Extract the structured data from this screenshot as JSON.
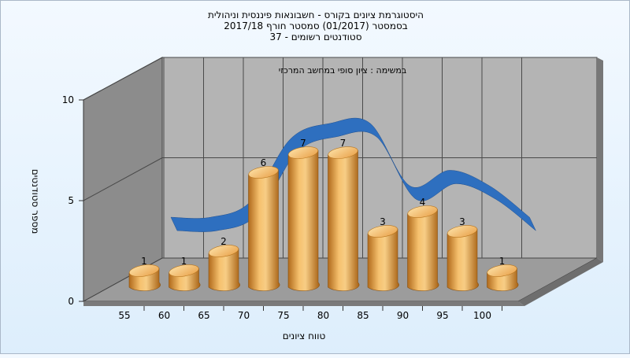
{
  "chart_data": {
    "type": "bar",
    "title_lines": [
      "היסטוגרמת ציונים בקורס - חשבונאות פיננסית וניהולית",
      "בסמסטר  (01/2017)  סמסטר חורף 2017/18",
      "סטודנטים רשומים - 37"
    ],
    "subtitle": "במשימה : ציון סופי במחשב המרכזי",
    "xlabel": "טווח ציונים",
    "ylabel": "מספר סטודנטים",
    "categories": [
      "55",
      "60",
      "65",
      "70",
      "75",
      "80",
      "85",
      "90",
      "95",
      "100"
    ],
    "values": [
      1,
      1,
      2,
      6,
      7,
      7,
      3,
      4,
      3,
      1
    ],
    "y_ticks": [
      "0",
      "5",
      "10"
    ],
    "ylim": [
      0,
      10
    ],
    "grid": true,
    "trend_line": true,
    "colors": {
      "bar": "#f0a84a",
      "trend": "#2e6fbf",
      "plot_back": "#b4b4b4",
      "plot_side": "#8c8c8c",
      "floor": "#9a9a9a"
    }
  }
}
